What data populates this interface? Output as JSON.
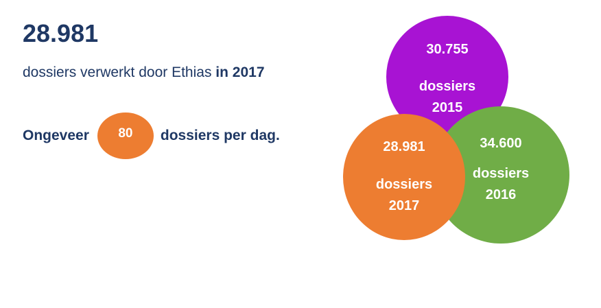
{
  "headline": {
    "number": "28.981",
    "subtitle_prefix": "dossiers verwerkt door Ethias",
    "subtitle_bold": "in 2017"
  },
  "per_day": {
    "prefix": "Ongeveer",
    "value": "80",
    "suffix": "dossiers per dag."
  },
  "circles": {
    "y2015": {
      "value": "30.755",
      "label_line1": "dossiers",
      "label_line2": "2015",
      "color": "#a813d3"
    },
    "y2016": {
      "value": "34.600",
      "label_line1": "dossiers",
      "label_line2": "2016",
      "color": "#70ad47"
    },
    "y2017": {
      "value": "28.981",
      "label_line1": "dossiers",
      "label_line2": "2017",
      "color": "#ed7d31"
    }
  },
  "colors": {
    "text_navy": "#1f3864",
    "accent_orange": "#ed7d31"
  }
}
